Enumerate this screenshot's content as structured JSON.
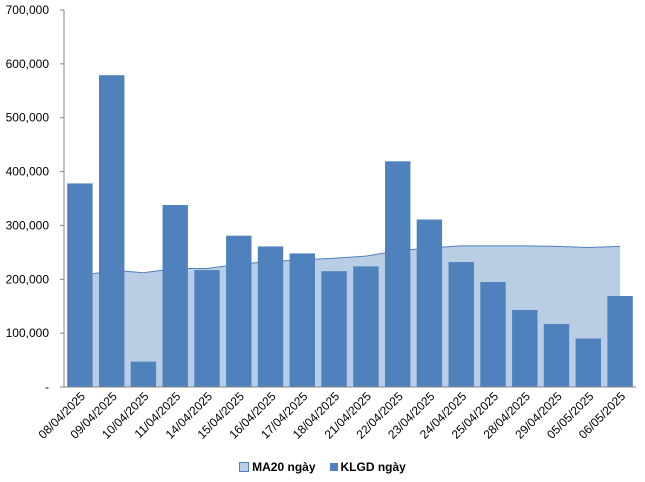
{
  "chart_data": {
    "type": "bar",
    "categories": [
      "08/04/2025",
      "09/04/2025",
      "10/04/2025",
      "11/04/2025",
      "14/04/2025",
      "15/04/2025",
      "16/04/2025",
      "17/04/2025",
      "18/04/2025",
      "21/04/2025",
      "22/04/2025",
      "23/04/2025",
      "24/04/2025",
      "25/04/2025",
      "28/04/2025",
      "29/04/2025",
      "05/05/2025",
      "06/05/2025"
    ],
    "yticks": [
      "-",
      "100,000",
      "200,000",
      "300,000",
      "400,000",
      "500,000",
      "600,000",
      "700,000"
    ],
    "ylim": [
      0,
      700000
    ],
    "series": [
      {
        "name": "MA20 ngày",
        "type": "area",
        "color": "#b9cde5",
        "edge_color": "#4f81bd",
        "values": [
          205000,
          217000,
          212000,
          220000,
          220000,
          228000,
          233000,
          236000,
          239000,
          243000,
          253000,
          258000,
          262000,
          262000,
          262000,
          261000,
          259000,
          261000
        ]
      },
      {
        "name": "KLGD ngày",
        "type": "bar",
        "color": "#4f81bd",
        "values": [
          378000,
          579000,
          47000,
          338000,
          217000,
          281000,
          261000,
          248000,
          215000,
          224000,
          419000,
          311000,
          232000,
          195000,
          143000,
          117000,
          90000,
          169000
        ]
      }
    ]
  }
}
